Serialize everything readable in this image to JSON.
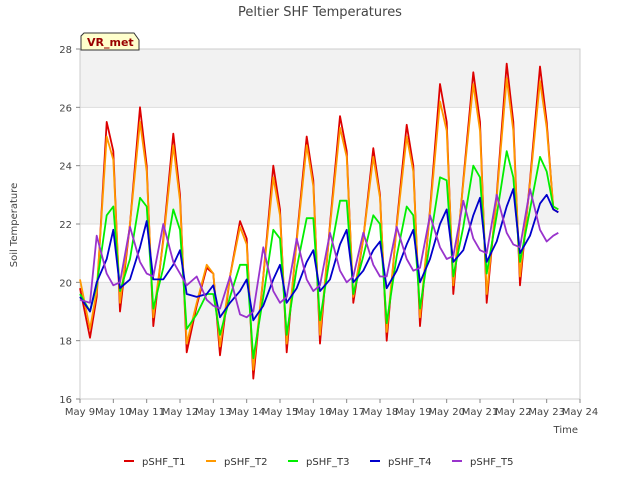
{
  "chart_data": {
    "type": "line",
    "title": "Peltier SHF Temperatures",
    "xlabel": "Time",
    "ylabel": "Soil Temperature",
    "badge": "VR_met",
    "xlim": [
      9,
      24
    ],
    "ylim": [
      16,
      28
    ],
    "x_ticks": [
      9,
      10,
      11,
      12,
      13,
      14,
      15,
      16,
      17,
      18,
      19,
      20,
      21,
      22,
      23,
      24
    ],
    "x_tick_labels": [
      "May 9",
      "May 10",
      "May 11",
      "May 12",
      "May 13",
      "May 14",
      "May 15",
      "May 16",
      "May 17",
      "May 18",
      "May 19",
      "May 20",
      "May 21",
      "May 22",
      "May 23",
      "May 24"
    ],
    "y_ticks": [
      16,
      18,
      20,
      22,
      24,
      26,
      28
    ],
    "y_tick_labels": [
      "16",
      "18",
      "20",
      "22",
      "24",
      "26",
      "28"
    ],
    "grid": true,
    "legend_position": "bottom",
    "series": [
      {
        "name": "pSHF_T1",
        "color": "#dd0000",
        "x": [
          9.0,
          9.3,
          9.5,
          9.8,
          10.0,
          10.2,
          10.5,
          10.8,
          11.0,
          11.2,
          11.5,
          11.8,
          12.0,
          12.2,
          12.5,
          12.8,
          13.0,
          13.2,
          13.5,
          13.8,
          14.0,
          14.2,
          14.5,
          14.8,
          15.0,
          15.2,
          15.5,
          15.8,
          16.0,
          16.2,
          16.5,
          16.8,
          17.0,
          17.2,
          17.5,
          17.8,
          18.0,
          18.2,
          18.5,
          18.8,
          19.0,
          19.2,
          19.5,
          19.8,
          20.0,
          20.2,
          20.5,
          20.8,
          21.0,
          21.2,
          21.5,
          21.8,
          22.0,
          22.2,
          22.5,
          22.8,
          23.0,
          23.2,
          23.35
        ],
        "y": [
          19.8,
          18.1,
          19.5,
          25.5,
          24.5,
          19.0,
          22.0,
          26.0,
          24.0,
          18.5,
          21.5,
          25.1,
          23.0,
          17.6,
          19.2,
          20.5,
          20.3,
          17.5,
          20.2,
          22.1,
          21.5,
          16.7,
          20.2,
          24.0,
          22.5,
          17.6,
          21.5,
          25.0,
          23.5,
          17.9,
          22.0,
          25.7,
          24.5,
          19.3,
          21.5,
          24.6,
          23.0,
          18.0,
          22.0,
          25.4,
          24.0,
          18.5,
          22.5,
          26.8,
          25.5,
          19.6,
          23.5,
          27.2,
          25.5,
          19.3,
          23.0,
          27.5,
          25.5,
          19.9,
          23.5,
          27.4,
          25.5,
          22.5,
          22.4
        ]
      },
      {
        "name": "pSHF_T2",
        "color": "#ff9900",
        "x": [
          9.0,
          9.3,
          9.5,
          9.8,
          10.0,
          10.2,
          10.5,
          10.8,
          11.0,
          11.2,
          11.5,
          11.8,
          12.0,
          12.2,
          12.5,
          12.8,
          13.0,
          13.2,
          13.5,
          13.8,
          14.0,
          14.2,
          14.5,
          14.8,
          15.0,
          15.2,
          15.5,
          15.8,
          16.0,
          16.2,
          16.5,
          16.8,
          17.0,
          17.2,
          17.5,
          17.8,
          18.0,
          18.2,
          18.5,
          18.8,
          19.0,
          19.2,
          19.5,
          19.8,
          20.0,
          20.2,
          20.5,
          20.8,
          21.0,
          21.2,
          21.5,
          21.8,
          22.0,
          22.2,
          22.5,
          22.8,
          23.0,
          23.2,
          23.35
        ],
        "y": [
          20.1,
          18.4,
          19.7,
          25.0,
          24.2,
          19.3,
          22.0,
          25.5,
          23.8,
          18.8,
          21.4,
          24.7,
          22.8,
          17.9,
          19.3,
          20.6,
          20.3,
          17.8,
          20.2,
          21.9,
          21.3,
          17.0,
          20.2,
          23.6,
          22.3,
          17.9,
          21.4,
          24.7,
          23.3,
          18.2,
          21.9,
          25.3,
          24.3,
          19.5,
          21.5,
          24.3,
          22.9,
          18.3,
          21.9,
          25.0,
          23.8,
          18.8,
          22.4,
          26.2,
          25.2,
          19.9,
          23.4,
          26.8,
          25.2,
          19.6,
          22.9,
          27.0,
          25.2,
          20.2,
          23.4,
          26.9,
          25.3,
          22.6,
          22.5
        ]
      },
      {
        "name": "pSHF_T3",
        "color": "#00ee00",
        "x": [
          9.0,
          9.3,
          9.5,
          9.8,
          10.0,
          10.2,
          10.5,
          10.8,
          11.0,
          11.2,
          11.5,
          11.8,
          12.0,
          12.2,
          12.5,
          12.8,
          13.0,
          13.2,
          13.5,
          13.8,
          14.0,
          14.2,
          14.5,
          14.8,
          15.0,
          15.2,
          15.5,
          15.8,
          16.0,
          16.2,
          16.5,
          16.8,
          17.0,
          17.2,
          17.5,
          17.8,
          18.0,
          18.2,
          18.5,
          18.8,
          19.0,
          19.2,
          19.5,
          19.8,
          20.0,
          20.2,
          20.5,
          20.8,
          21.0,
          21.2,
          21.5,
          21.8,
          22.0,
          22.2,
          22.5,
          22.8,
          23.0,
          23.2,
          23.35
        ],
        "y": [
          19.6,
          19.0,
          19.9,
          22.3,
          22.6,
          19.7,
          20.8,
          22.9,
          22.6,
          19.1,
          20.5,
          22.5,
          21.8,
          18.4,
          18.9,
          19.6,
          19.6,
          18.2,
          19.5,
          20.6,
          20.6,
          17.4,
          19.5,
          21.8,
          21.5,
          18.2,
          20.5,
          22.2,
          22.2,
          18.7,
          20.9,
          22.8,
          22.8,
          19.6,
          20.9,
          22.3,
          22.0,
          18.6,
          20.9,
          22.6,
          22.3,
          19.1,
          21.4,
          23.6,
          23.5,
          20.2,
          21.9,
          24.0,
          23.6,
          20.3,
          22.3,
          24.5,
          23.6,
          20.7,
          22.5,
          24.3,
          23.8,
          22.6,
          22.5
        ]
      },
      {
        "name": "pSHF_T4",
        "color": "#0000cc",
        "x": [
          9.0,
          9.3,
          9.5,
          9.8,
          10.0,
          10.2,
          10.5,
          10.8,
          11.0,
          11.2,
          11.5,
          11.8,
          12.0,
          12.2,
          12.5,
          12.8,
          13.0,
          13.2,
          13.5,
          13.8,
          14.0,
          14.2,
          14.5,
          14.8,
          15.0,
          15.2,
          15.5,
          15.8,
          16.0,
          16.2,
          16.5,
          16.8,
          17.0,
          17.2,
          17.5,
          17.8,
          18.0,
          18.2,
          18.5,
          18.8,
          19.0,
          19.2,
          19.5,
          19.8,
          20.0,
          20.2,
          20.5,
          20.8,
          21.0,
          21.2,
          21.5,
          21.8,
          22.0,
          22.2,
          22.5,
          22.8,
          23.0,
          23.2,
          23.35
        ],
        "y": [
          19.5,
          19.0,
          20.0,
          20.8,
          21.8,
          19.8,
          20.1,
          21.2,
          22.1,
          20.1,
          20.1,
          20.6,
          21.1,
          19.6,
          19.5,
          19.6,
          19.9,
          18.8,
          19.3,
          19.7,
          20.1,
          18.7,
          19.2,
          20.1,
          20.6,
          19.3,
          19.8,
          20.7,
          21.1,
          19.7,
          20.1,
          21.3,
          21.8,
          20.0,
          20.4,
          21.1,
          21.4,
          19.8,
          20.4,
          21.3,
          21.8,
          20.0,
          20.8,
          22.0,
          22.5,
          20.7,
          21.1,
          22.3,
          22.9,
          20.7,
          21.4,
          22.6,
          23.2,
          21.0,
          21.6,
          22.7,
          23.0,
          22.5,
          22.4
        ]
      },
      {
        "name": "pSHF_T5",
        "color": "#9933cc",
        "x": [
          9.0,
          9.3,
          9.5,
          9.8,
          10.0,
          10.2,
          10.5,
          10.8,
          11.0,
          11.2,
          11.5,
          11.8,
          12.0,
          12.2,
          12.5,
          12.8,
          13.0,
          13.2,
          13.5,
          13.8,
          14.0,
          14.2,
          14.5,
          14.8,
          15.0,
          15.2,
          15.5,
          15.8,
          16.0,
          16.2,
          16.5,
          16.8,
          17.0,
          17.2,
          17.5,
          17.8,
          18.0,
          18.2,
          18.5,
          18.8,
          19.0,
          19.2,
          19.5,
          19.8,
          20.0,
          20.2,
          20.5,
          20.8,
          21.0,
          21.2,
          21.5,
          21.8,
          22.0,
          22.2,
          22.5,
          22.8,
          23.0,
          23.2,
          23.35
        ],
        "y": [
          19.4,
          19.3,
          21.6,
          20.3,
          19.9,
          20.0,
          21.9,
          20.7,
          20.3,
          20.2,
          22.0,
          20.7,
          20.3,
          19.9,
          20.2,
          19.4,
          19.2,
          19.1,
          20.2,
          18.9,
          18.8,
          19.0,
          21.2,
          19.7,
          19.3,
          19.5,
          21.5,
          20.1,
          19.7,
          19.9,
          21.7,
          20.4,
          20.0,
          20.2,
          21.7,
          20.6,
          20.2,
          20.2,
          21.9,
          20.8,
          20.4,
          20.5,
          22.3,
          21.2,
          20.8,
          20.9,
          22.8,
          21.5,
          21.1,
          21.0,
          23.0,
          21.7,
          21.3,
          21.2,
          23.2,
          21.8,
          21.4,
          21.6,
          21.7
        ]
      }
    ]
  }
}
